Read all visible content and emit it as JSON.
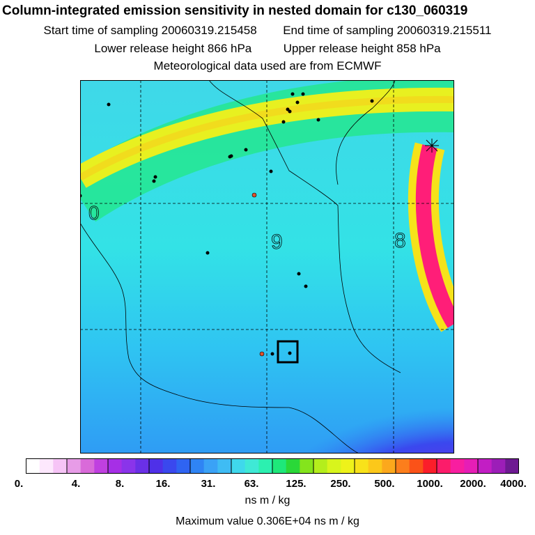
{
  "header": {
    "title": "Column-integrated emission sensitivity in nested domain for c130_060319",
    "start_label": "Start time of sampling 20060319.215458",
    "end_label": "End time of sampling 20060319.215511",
    "lower_label": "Lower release height  866 hPa",
    "upper_label": "Upper release height  858 hPa",
    "met_label": "Meteorological data used are from ECMWF"
  },
  "map": {
    "contour_labels": [
      "0",
      "9",
      "8"
    ],
    "base_color": "#33e0e8",
    "plume_color": "#e8f020",
    "release_plume_color": "#ff1e78",
    "low_region_color": "#5a2ce0",
    "point_marker_color": "#000000",
    "origin_marker_color": "#e0502a"
  },
  "colorbar": {
    "colors": [
      "#ffffff",
      "#fde8fd",
      "#f6c4f6",
      "#e79ce7",
      "#d96ad9",
      "#c040e0",
      "#a62fe6",
      "#8a34ea",
      "#6a30e6",
      "#4f30e8",
      "#3a48ee",
      "#2f64f2",
      "#2f84f4",
      "#3aa2f6",
      "#3fbcf4",
      "#3fd8ec",
      "#3fe9d6",
      "#2cf0b0",
      "#1ee87a",
      "#2ad838",
      "#84e41c",
      "#b4ee1c",
      "#d8f51c",
      "#eef21a",
      "#f8e21a",
      "#fcc81a",
      "#fca81c",
      "#fc7e1c",
      "#fb5218",
      "#fb1e2a",
      "#fc1c6a",
      "#f81ea0",
      "#e61eb6",
      "#c21ec4",
      "#9c1eb8",
      "#6e1a92"
    ],
    "tick_labels": [
      "0.",
      "4.",
      "8.",
      "16.",
      "31.",
      "63.",
      "125.",
      "250.",
      "500.",
      "1000.",
      "2000.",
      "4000."
    ],
    "units": "ns m / kg",
    "max_value_text": "Maximum value  0.306E+04 ns m / kg"
  }
}
